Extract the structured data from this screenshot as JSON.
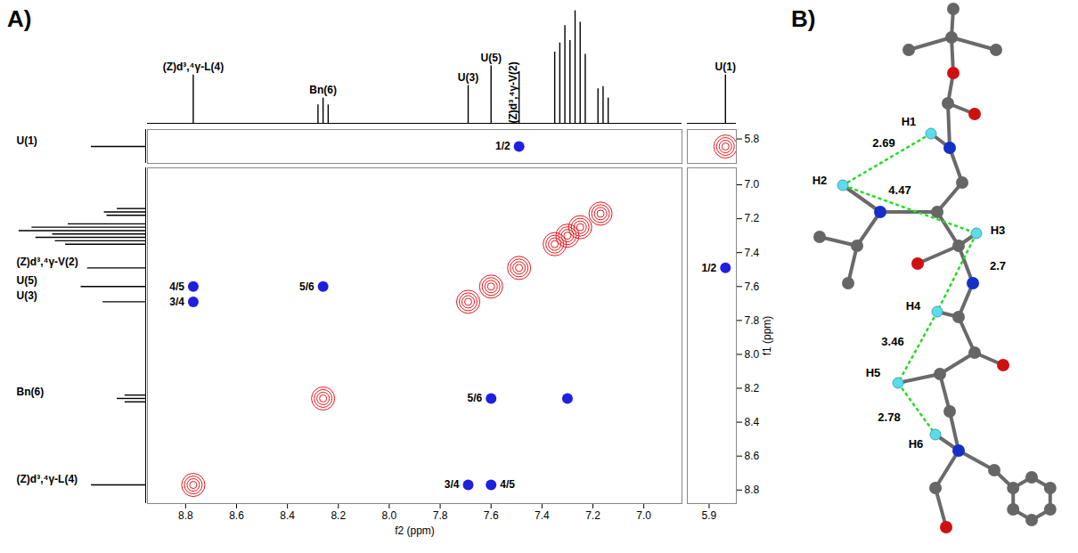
{
  "chart_data": {
    "type": "2d_nmr",
    "panel_label": "A)",
    "x_label": "f2 (ppm)",
    "y_label": "f1 (ppm)",
    "x_segments": [
      {
        "xlim": [
          8.95,
          6.85
        ],
        "xticks": [
          8.8,
          8.6,
          8.4,
          8.2,
          {
            "value": 8,
            "label": "8.0"
          },
          7.8,
          7.6,
          7.4,
          7.2,
          {
            "value": 7,
            "label": "7.0"
          }
        ]
      },
      {
        "xlim": [
          5.98,
          5.8
        ],
        "xticks": [
          5.9
        ]
      }
    ],
    "y_segments": [
      {
        "ylim": [
          5.93,
          5.75
        ],
        "yticks": [
          5.8
        ]
      },
      {
        "ylim": [
          8.88,
          6.9
        ],
        "yticks": [
          {
            "value": 7,
            "label": "7.0"
          },
          7.2,
          7.4,
          7.6,
          7.8,
          {
            "value": 8,
            "label": "8.0"
          },
          8.2,
          8.4,
          8.6,
          8.8
        ]
      }
    ],
    "spectrum_1d": {
      "color": "#000000",
      "ylim": [
        0,
        1
      ],
      "tick_labels": false,
      "peaks": [
        {
          "ppm": 8.77,
          "intensity": 0.42,
          "label": "(Z)d³,⁴γ-L(4)"
        },
        {
          "ppm": 8.28,
          "intensity": 0.16
        },
        {
          "ppm": 8.26,
          "intensity": 0.22,
          "label": "Bn(6)"
        },
        {
          "ppm": 8.24,
          "intensity": 0.16
        },
        {
          "ppm": 7.69,
          "intensity": 0.33,
          "label": "U(3)"
        },
        {
          "ppm": 7.6,
          "intensity": 0.5,
          "label": "U(5)"
        },
        {
          "ppm": 7.49,
          "intensity": 0.45,
          "label": "(Z)d³,⁴γ-V(2)"
        },
        {
          "ppm": 7.35,
          "intensity": 0.62
        },
        {
          "ppm": 7.33,
          "intensity": 0.7
        },
        {
          "ppm": 7.31,
          "intensity": 0.85
        },
        {
          "ppm": 7.29,
          "intensity": 0.72
        },
        {
          "ppm": 7.27,
          "intensity": 0.98
        },
        {
          "ppm": 7.25,
          "intensity": 0.88
        },
        {
          "ppm": 7.23,
          "intensity": 0.6
        },
        {
          "ppm": 7.18,
          "intensity": 0.3
        },
        {
          "ppm": 7.16,
          "intensity": 0.32
        },
        {
          "ppm": 7.14,
          "intensity": 0.22
        },
        {
          "ppm": 5.84,
          "intensity": 0.42,
          "label": "U(1)"
        }
      ]
    },
    "diagonal_peaks": {
      "color": "#e8161b",
      "points": [
        {
          "x": 8.77,
          "y": 8.77
        },
        {
          "x": 8.26,
          "y": 8.26
        },
        {
          "x": 7.69,
          "y": 7.69
        },
        {
          "x": 7.6,
          "y": 7.6
        },
        {
          "x": 7.49,
          "y": 7.49
        },
        {
          "x": 7.35,
          "y": 7.35
        },
        {
          "x": 7.3,
          "y": 7.3
        },
        {
          "x": 7.25,
          "y": 7.25
        },
        {
          "x": 7.17,
          "y": 7.17
        },
        {
          "x": 5.84,
          "y": 5.84
        }
      ]
    },
    "cross_peaks": {
      "color": "#1f1fe0",
      "points": [
        {
          "x": 7.49,
          "y": 5.84,
          "label": "1/2"
        },
        {
          "x": 5.84,
          "y": 7.49,
          "label": "1/2"
        },
        {
          "x": 8.77,
          "y": 7.6,
          "label": "4/5"
        },
        {
          "x": 8.77,
          "y": 7.69,
          "label": "3/4"
        },
        {
          "x": 8.26,
          "y": 7.6,
          "label": "5/6"
        },
        {
          "x": 7.6,
          "y": 8.26,
          "label": "5/6"
        },
        {
          "x": 7.3,
          "y": 8.26
        },
        {
          "x": 7.69,
          "y": 8.77,
          "label": "3/4"
        },
        {
          "x": 7.6,
          "y": 8.77,
          "label": "4/5"
        }
      ]
    }
  },
  "diagram": {
    "panel_label": "B)",
    "hydrogens": [
      "H1",
      "H2",
      "H3",
      "H4",
      "H5",
      "H6"
    ],
    "distances": [
      {
        "from": "H1",
        "to": "H2",
        "value": 2.69
      },
      {
        "from": "H2",
        "to": "H3",
        "value": 4.47
      },
      {
        "from": "H3",
        "to": "H4",
        "value": 2.7
      },
      {
        "from": "H4",
        "to": "H5",
        "value": 3.46
      },
      {
        "from": "H5",
        "to": "H6",
        "value": 2.78
      }
    ]
  }
}
